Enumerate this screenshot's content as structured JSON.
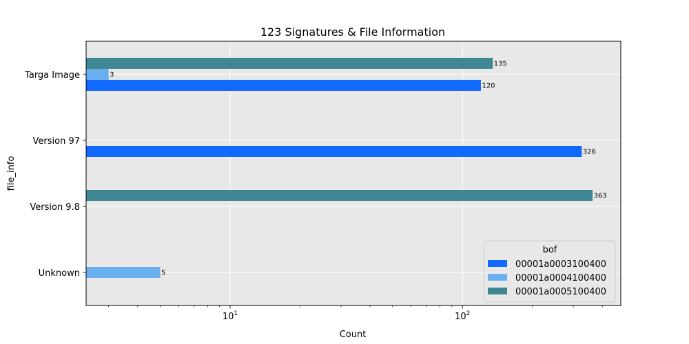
{
  "chart_data": {
    "type": "bar",
    "orientation": "horizontal",
    "title": "123 Signatures & File Information",
    "xlabel": "Count",
    "ylabel": "file_info",
    "xscale": "log",
    "xlim": [
      2.4,
      480
    ],
    "x_ticks": [
      {
        "value": 10,
        "base": "10",
        "exp": "1"
      },
      {
        "value": 100,
        "base": "10",
        "exp": "2"
      }
    ],
    "categories": [
      "Targa Image",
      "Version 97",
      "Version 9.8",
      "Unknown"
    ],
    "series": [
      {
        "name": "00001a0003100400",
        "color": "#1169fe",
        "values": [
          120,
          326,
          null,
          null
        ]
      },
      {
        "name": "00001a0004100400",
        "color": "#6aaff0",
        "values": [
          3,
          null,
          null,
          5
        ]
      },
      {
        "name": "00001a0005100400",
        "color": "#3f8793",
        "values": [
          135,
          null,
          363,
          null
        ]
      }
    ],
    "grid": true,
    "background": "#e8e8e8",
    "legend": {
      "title": "bof",
      "position": "lower-right"
    }
  }
}
